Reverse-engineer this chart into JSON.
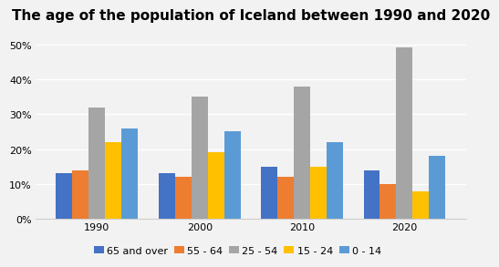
{
  "title": "The age of the population of Iceland between 1990 and 2020",
  "years": [
    1990,
    2000,
    2010,
    2020
  ],
  "categories": [
    "65 and over",
    "55 - 64",
    "25 - 54",
    "15 - 24",
    "0 - 14"
  ],
  "colors": [
    "#4472c4",
    "#ed7d31",
    "#a5a5a5",
    "#ffc000",
    "#5b9bd5"
  ],
  "values": {
    "65 and over": [
      13,
      13,
      15,
      14
    ],
    "55 - 64": [
      14,
      12,
      12,
      10
    ],
    "25 - 54": [
      32,
      35,
      38,
      49
    ],
    "15 - 24": [
      22,
      19,
      15,
      8
    ],
    "0 - 14": [
      26,
      25,
      22,
      18
    ]
  },
  "ylim": [
    0,
    55
  ],
  "yticks": [
    0,
    10,
    20,
    30,
    40,
    50
  ],
  "ytick_labels": [
    "0%",
    "10%",
    "20%",
    "30%",
    "40%",
    "50%"
  ],
  "background_color": "#f2f2f2",
  "plot_bg_color": "#f2f2f2",
  "grid_color": "#ffffff",
  "title_fontsize": 11,
  "tick_fontsize": 8,
  "legend_fontsize": 8,
  "bar_width": 0.16
}
